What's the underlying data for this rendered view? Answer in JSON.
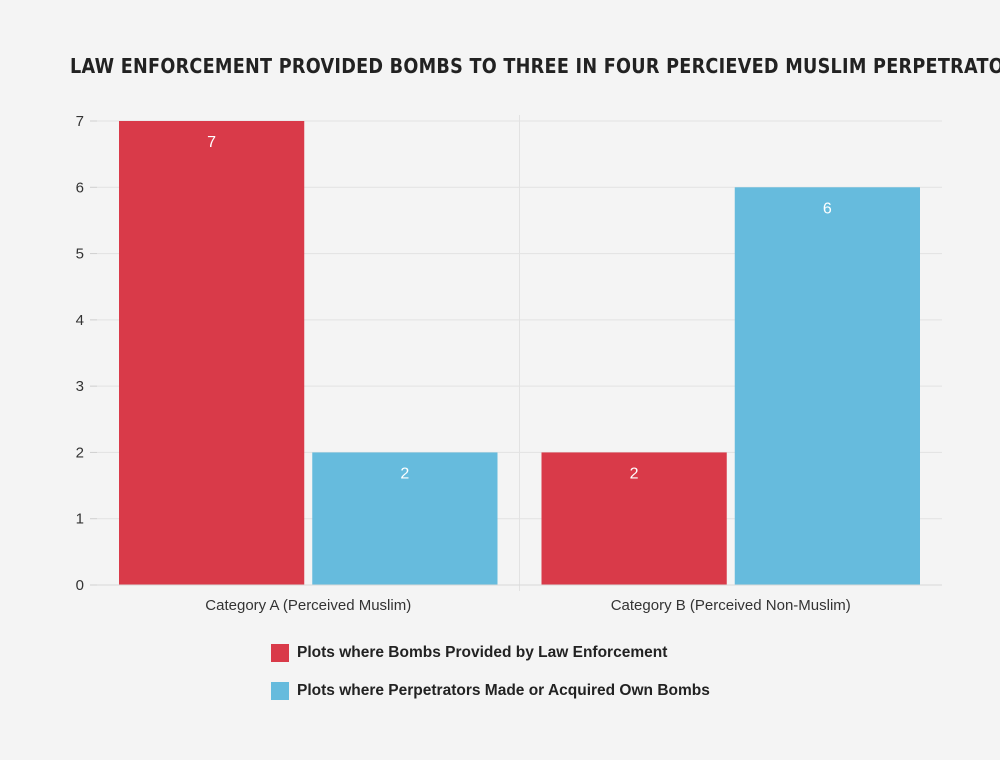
{
  "chart_data": {
    "type": "bar",
    "title": "LAW ENFORCEMENT PROVIDED BOMBS TO THREE IN FOUR PERCIEVED MUSLIM PERPETRATORS",
    "categories": [
      "Category A (Perceived Muslim)",
      "Category B (Perceived Non-Muslim)"
    ],
    "series": [
      {
        "name": "Plots where Bombs Provided by Law Enforcement",
        "values": [
          7,
          2
        ],
        "color": "#d93a49"
      },
      {
        "name": "Plots where Perpetrators Made or Acquired Own Bombs",
        "values": [
          2,
          6
        ],
        "color": "#66bbdd"
      }
    ],
    "xlabel": "",
    "ylabel": "",
    "ylim": [
      0,
      7
    ],
    "yticks": [
      0,
      1,
      2,
      3,
      4,
      5,
      6,
      7
    ],
    "grid": true,
    "legend_position": "bottom"
  }
}
